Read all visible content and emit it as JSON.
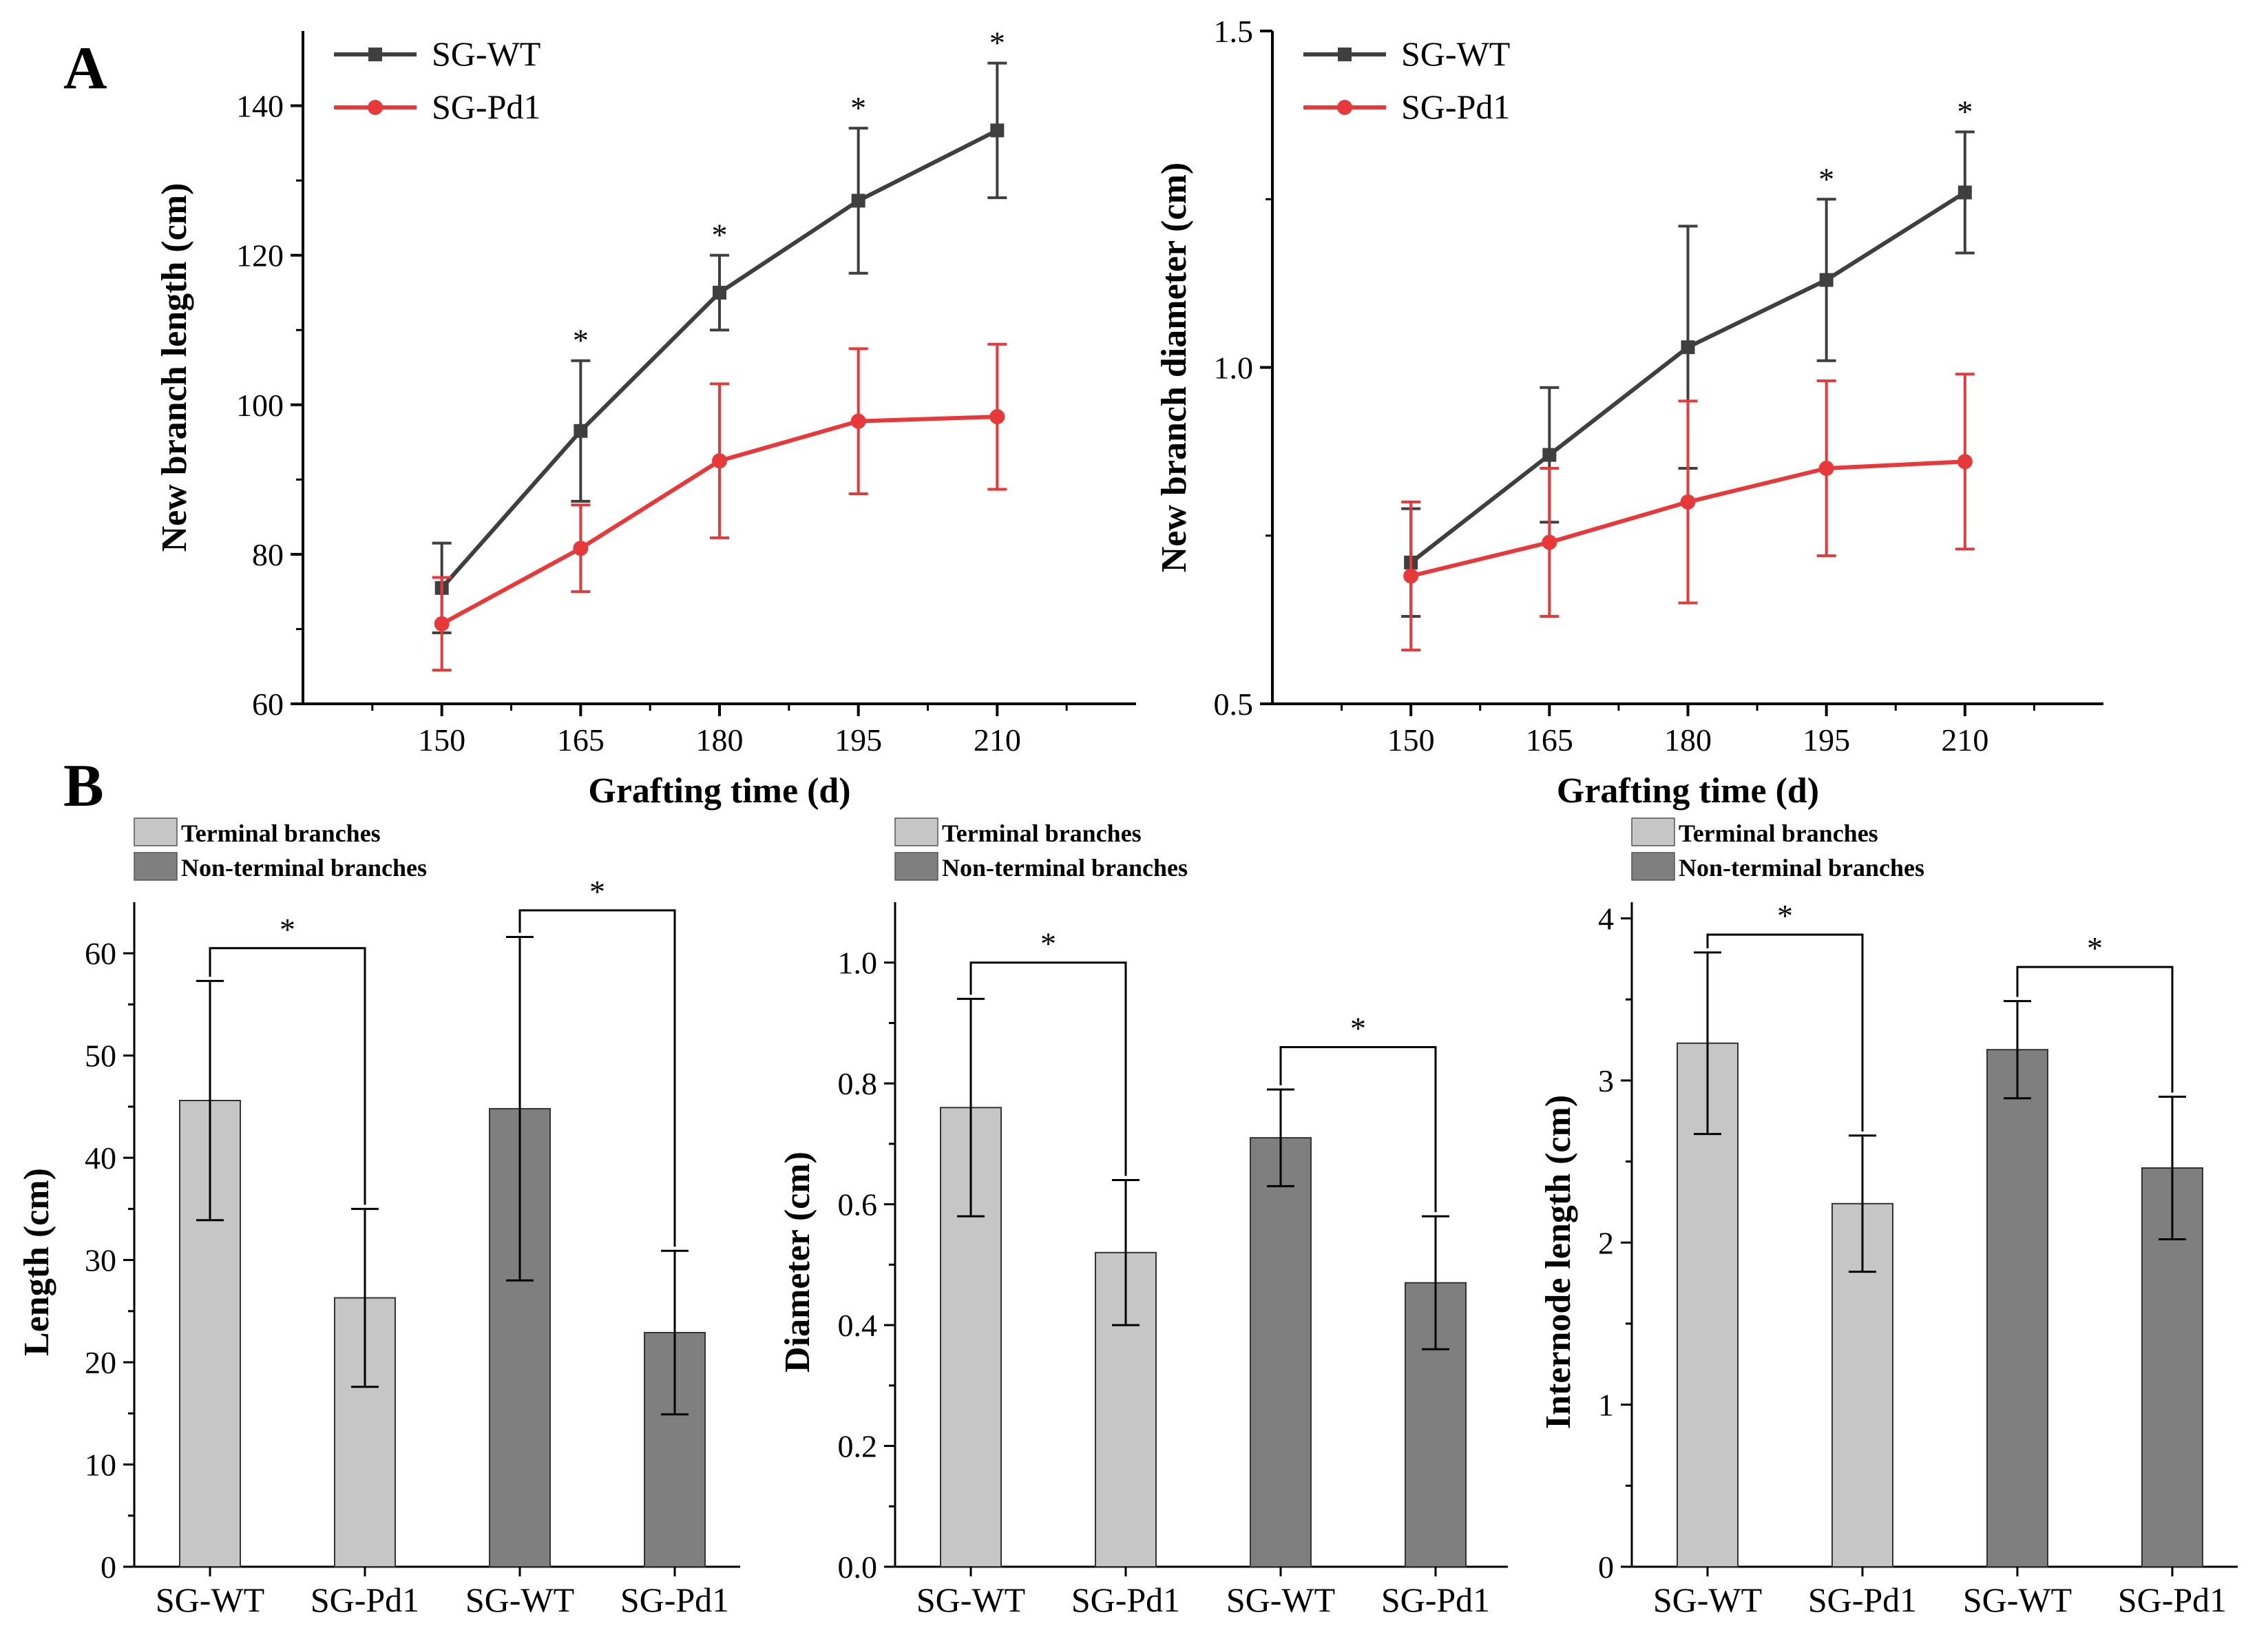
{
  "panels": {
    "A": "A",
    "B": "B"
  },
  "chart_data": [
    {
      "type": "line",
      "x": [
        150,
        165,
        180,
        195,
        210
      ],
      "xlabel": "Grafting time (d)",
      "ylabel": "New branch length (cm)",
      "xlim": [
        135,
        225
      ],
      "ylim": [
        60,
        150
      ],
      "yticks": [
        60,
        80,
        100,
        120,
        140
      ],
      "legend": "top-left",
      "series": [
        {
          "name": "SG-WT",
          "color": "#3f3f3f",
          "marker": "square",
          "values": [
            75.5,
            96.5,
            115.0,
            127.3,
            136.7
          ],
          "errors": [
            6.0,
            9.4,
            5.0,
            9.7,
            9.0
          ]
        },
        {
          "name": "SG-Pd1",
          "color": "#e8393a",
          "marker": "circle",
          "values": [
            70.7,
            80.8,
            92.5,
            97.8,
            98.4
          ],
          "errors": [
            6.2,
            5.8,
            10.3,
            9.7,
            9.7
          ]
        }
      ],
      "significance": [
        "",
        "*",
        "*",
        "*",
        "*"
      ]
    },
    {
      "type": "line",
      "x": [
        150,
        165,
        180,
        195,
        210
      ],
      "xlabel": "Grafting time (d)",
      "ylabel": "New branch diameter (cm)",
      "xlim": [
        135,
        225
      ],
      "ylim": [
        0.5,
        1.5
      ],
      "yticks": [
        0.5,
        1.0,
        1.5
      ],
      "legend": "top-left",
      "series": [
        {
          "name": "SG-WT",
          "color": "#3f3f3f",
          "marker": "square",
          "values": [
            0.71,
            0.87,
            1.03,
            1.13,
            1.26
          ],
          "errors": [
            0.08,
            0.1,
            0.18,
            0.12,
            0.09
          ]
        },
        {
          "name": "SG-Pd1",
          "color": "#e8393a",
          "marker": "circle",
          "values": [
            0.69,
            0.74,
            0.8,
            0.85,
            0.86
          ],
          "errors": [
            0.11,
            0.11,
            0.15,
            0.13,
            0.13
          ]
        }
      ],
      "significance": [
        "",
        "",
        "",
        "*",
        "*"
      ]
    },
    {
      "type": "bar",
      "categories": [
        "SG-WT",
        "SG-Pd1",
        "SG-WT",
        "SG-Pd1"
      ],
      "ylabel": "Length (cm)",
      "ylim": [
        0,
        65
      ],
      "yticks": [
        0,
        10,
        20,
        30,
        40,
        50,
        60
      ],
      "legend": "top-left",
      "legend_entries": [
        {
          "name": "Terminal branches",
          "color": "#c6c6c6"
        },
        {
          "name": "Non-terminal branches",
          "color": "#7f7f7f"
        }
      ],
      "values": [
        45.6,
        26.3,
        44.8,
        22.9
      ],
      "errors": [
        11.7,
        8.7,
        16.8,
        8.0
      ],
      "bar_groups": [
        0,
        0,
        1,
        1
      ],
      "brackets": [
        {
          "from": 0,
          "to": 1,
          "top": 60.5,
          "label": "*"
        },
        {
          "from": 2,
          "to": 3,
          "top": 64.2,
          "label": "*"
        }
      ]
    },
    {
      "type": "bar",
      "categories": [
        "SG-WT",
        "SG-Pd1",
        "SG-WT",
        "SG-Pd1"
      ],
      "ylabel": "Diameter (cm)",
      "ylim": [
        0,
        1.1
      ],
      "yticks": [
        "0.0",
        "0.2",
        "0.4",
        "0.6",
        "0.8",
        "1.0"
      ],
      "legend": "top-left",
      "legend_entries": [
        {
          "name": "Terminal branches",
          "color": "#c6c6c6"
        },
        {
          "name": "Non-terminal branches",
          "color": "#7f7f7f"
        }
      ],
      "values": [
        0.76,
        0.52,
        0.71,
        0.47
      ],
      "errors": [
        0.18,
        0.12,
        0.08,
        0.11
      ],
      "bar_groups": [
        0,
        0,
        1,
        1
      ],
      "brackets": [
        {
          "from": 0,
          "to": 1,
          "top": 1.0,
          "label": "*"
        },
        {
          "from": 2,
          "to": 3,
          "top": 0.86,
          "label": "*"
        }
      ]
    },
    {
      "type": "bar",
      "categories": [
        "SG-WT",
        "SG-Pd1",
        "SG-WT",
        "SG-Pd1"
      ],
      "ylabel": "Internode length (cm)",
      "ylim": [
        0,
        4.1
      ],
      "yticks": [
        0,
        1,
        2,
        3,
        4
      ],
      "legend": "top-left",
      "legend_entries": [
        {
          "name": "Terminal branches",
          "color": "#c6c6c6"
        },
        {
          "name": "Non-terminal branches",
          "color": "#7f7f7f"
        }
      ],
      "values": [
        3.23,
        2.24,
        3.19,
        2.46
      ],
      "errors": [
        0.56,
        0.42,
        0.3,
        0.44
      ],
      "bar_groups": [
        0,
        0,
        1,
        1
      ],
      "brackets": [
        {
          "from": 0,
          "to": 1,
          "top": 3.9,
          "label": "*"
        },
        {
          "from": 2,
          "to": 3,
          "top": 3.7,
          "label": "*"
        }
      ]
    }
  ]
}
